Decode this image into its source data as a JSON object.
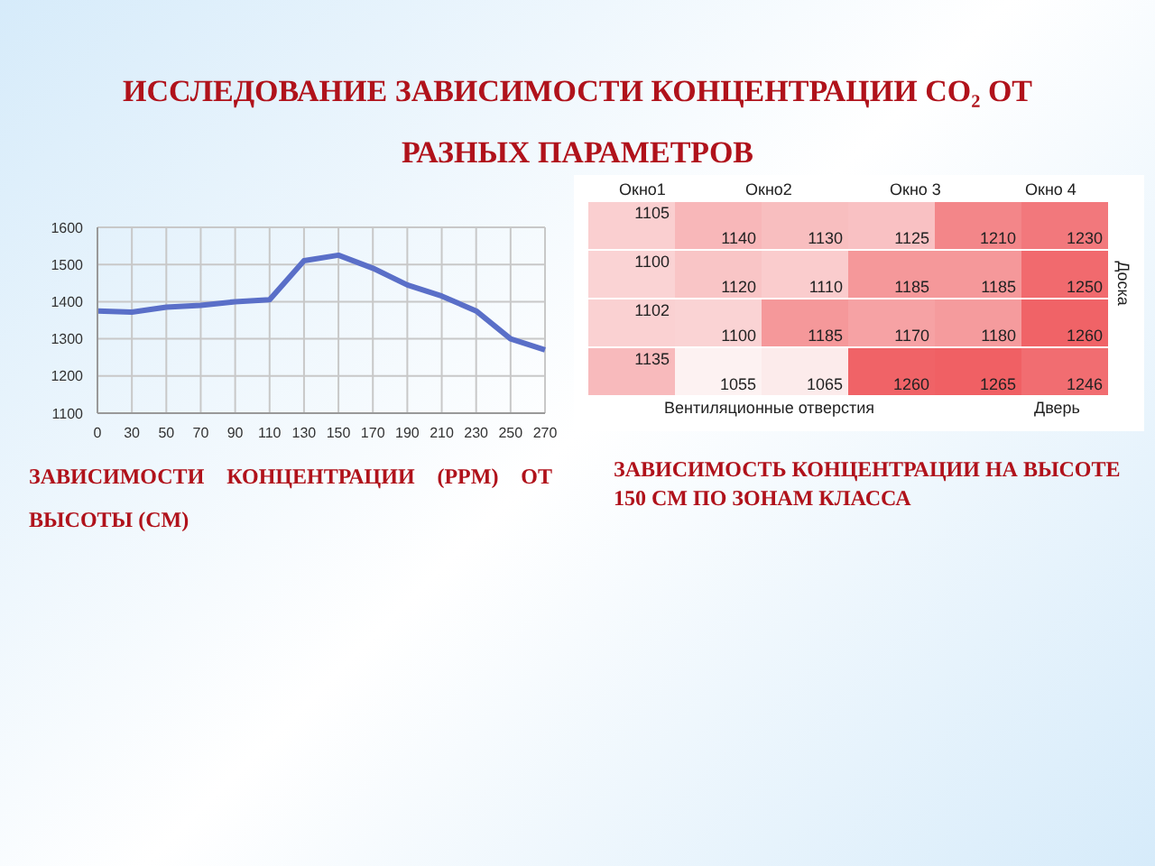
{
  "chart_data": [
    {
      "type": "line",
      "title": "ИССЛЕДОВАНИЕ ЗАВИСИМОСТИ КОНЦЕНТРАЦИИ CO₂ ОТ РАЗНЫХ ПАРАМЕТРОВ",
      "subtitle": "ЗАВИСИМОСТИ КОНЦЕНТРАЦИИ (PPM) ОТ ВЫСОТЫ (СМ)",
      "categories": [
        "0",
        "30",
        "50",
        "70",
        "90",
        "110",
        "130",
        "150",
        "170",
        "190",
        "210",
        "230",
        "250",
        "270"
      ],
      "series": [
        {
          "color": "#5a6fc8",
          "values": [
            1375,
            1372,
            1385,
            1390,
            1400,
            1405,
            1510,
            1525,
            1490,
            1445,
            1415,
            1375,
            1300,
            1270
          ]
        }
      ],
      "ylim": [
        1100,
        1600
      ],
      "yticks": [
        1100,
        1200,
        1300,
        1400,
        1500,
        1600
      ],
      "grid": true,
      "marker": "none"
    },
    {
      "type": "heatmap",
      "title": "ЗАВИСИМОСТЬ КОНЦЕНТРАЦИИ НА ВЫСОТЕ 150 СМ ПО ЗОНАМ КЛАССА",
      "categories": [
        null,
        null,
        null,
        null,
        null,
        null
      ],
      "y_categories": [
        null,
        null,
        null,
        null
      ],
      "cells": [
        [
          1105,
          1140,
          1130,
          1125,
          1210,
          1230
        ],
        [
          1100,
          1120,
          1110,
          1185,
          1185,
          1250
        ],
        [
          1102,
          1100,
          1185,
          1170,
          1180,
          1260
        ],
        [
          1135,
          1055,
          1065,
          1260,
          1265,
          1246
        ]
      ],
      "data_labels": true,
      "annotations": [
        "Окно1",
        "Окно2",
        "Окно 3",
        "Окно 4",
        "Доска",
        "Вентиляционные отверстия",
        "Дверь"
      ]
    }
  ]
}
